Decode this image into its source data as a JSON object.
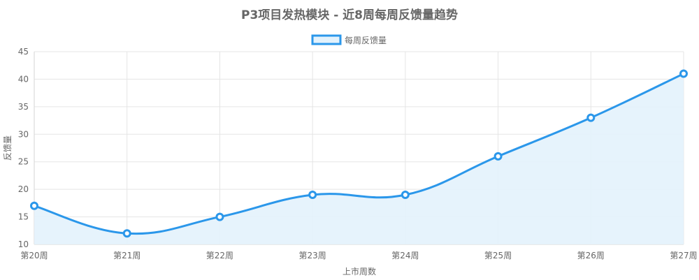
{
  "chart_data": {
    "type": "line",
    "title": "P3项目发热模块 - 近8周每周反馈量趋势",
    "xlabel": "上市周数",
    "ylabel": "反馈量",
    "categories": [
      "第20周",
      "第21周",
      "第22周",
      "第23周",
      "第24周",
      "第25周",
      "第26周",
      "第27周"
    ],
    "series": [
      {
        "name": "每周反馈量",
        "values": [
          17,
          12,
          15,
          19,
          19,
          26,
          33,
          41
        ]
      }
    ],
    "ylim": [
      10,
      45
    ],
    "yticks": [
      "10",
      "15",
      "20",
      "25",
      "30",
      "35",
      "40",
      "45"
    ],
    "grid": true,
    "legend_position": "top",
    "fill": true,
    "colors": {
      "line": "#2b97ea",
      "fill": "#e3f2fc",
      "grid": "#e5e5e5",
      "axis": "#d6d6d6",
      "text": "#666666"
    }
  }
}
